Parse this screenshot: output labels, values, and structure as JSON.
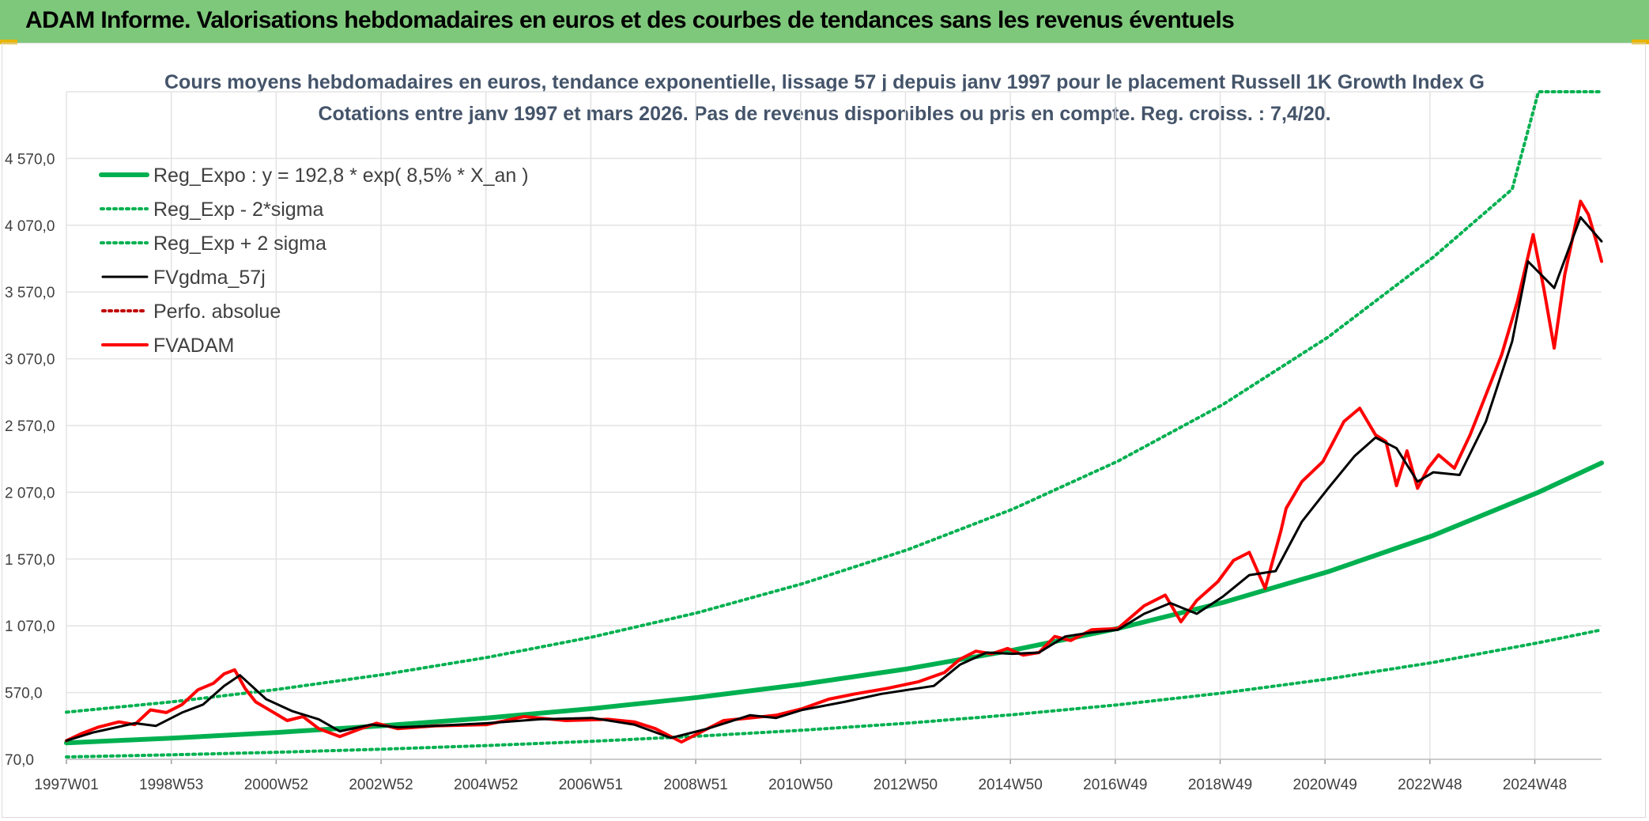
{
  "banner": {
    "title": "ADAM Informe. Valorisations hebdomadaires en euros et des courbes de tendances sans les revenus éventuels",
    "bg_color": "#7ec87b"
  },
  "chart_data": {
    "type": "line",
    "title": "Cours moyens hebdomadaires en euros, tendance exponentielle, lissage 57 j depuis janv 1997 pour le placement Russell 1K Growth Index G",
    "subtitle": "Cotations entre janv 1997 et mars 2026. Pas de revenus disponibles ou pris en compte. Reg. croiss. : 7,4/20.",
    "xlabel": "",
    "ylabel": "",
    "x_ticks": [
      "1997W01",
      "1998W53",
      "2000W52",
      "2002W52",
      "2004W52",
      "2006W51",
      "2008W51",
      "2010W50",
      "2012W50",
      "2014W50",
      "2016W49",
      "2018W49",
      "2020W49",
      "2022W48",
      "2024W48"
    ],
    "y_ticks": [
      "70,0",
      "570,0",
      "1 070,0",
      "1 570,0",
      "2 070,0",
      "2 570,0",
      "3 070,0",
      "3 570,0",
      "4 070,0",
      "4 570,0"
    ],
    "ylim": [
      70,
      5070
    ],
    "xlim": [
      1997.0,
      2026.2
    ],
    "grid": true,
    "legend_position": "top-left",
    "series": [
      {
        "name": "Reg_Expo : y = 192,8 * exp( 8,5% *  X_an )",
        "color": "#00b050",
        "style": "solid-thick",
        "x": [
          1997,
          1999,
          2001,
          2003,
          2005,
          2007,
          2009,
          2011,
          2013,
          2015,
          2017,
          2019,
          2021,
          2023,
          2025,
          2026.2
        ],
        "y": [
          193,
          228,
          271,
          321,
          380,
          450,
          533,
          632,
          748,
          887,
          1050,
          1245,
          1475,
          1747,
          2070,
          2290
        ]
      },
      {
        "name": "Reg_Exp - 2*sigma",
        "color": "#00b050",
        "style": "dotted",
        "x": [
          1997,
          1999,
          2001,
          2003,
          2005,
          2007,
          2009,
          2011,
          2013,
          2015,
          2017,
          2019,
          2021,
          2023,
          2025,
          2026.2
        ],
        "y": [
          88,
          104,
          123,
          146,
          173,
          205,
          243,
          288,
          341,
          404,
          478,
          567,
          672,
          796,
          943,
          1040
        ]
      },
      {
        "name": "Reg_Exp + 2 sigma",
        "color": "#00b050",
        "style": "dotted",
        "x": [
          1997,
          1999,
          2001,
          2003,
          2005,
          2007,
          2009,
          2011,
          2013,
          2015,
          2017,
          2019,
          2021,
          2023,
          2024.5,
          2025,
          2026.2
        ],
        "y": [
          423,
          500,
          593,
          703,
          833,
          986,
          1168,
          1385,
          1640,
          1944,
          2303,
          2728,
          3233,
          3831,
          4340,
          5070,
          5070
        ]
      },
      {
        "name": "FVgdma_57j",
        "color": "#000000",
        "style": "solid",
        "x": [
          1997,
          1997.5,
          1998.3,
          1998.7,
          1999.2,
          1999.6,
          2000.0,
          2000.3,
          2000.8,
          2001.3,
          2001.8,
          2002.2,
          2002.8,
          2003.3,
          2004.0,
          2005.0,
          2006.0,
          2007.0,
          2007.8,
          2008.5,
          2009.2,
          2010.0,
          2010.5,
          2011.0,
          2011.8,
          2012.5,
          2013.5,
          2014.0,
          2014.5,
          2015.0,
          2015.5,
          2016.0,
          2016.5,
          2017.0,
          2017.5,
          2018.0,
          2018.5,
          2019.0,
          2019.5,
          2020.0,
          2020.5,
          2021.0,
          2021.5,
          2021.9,
          2022.3,
          2022.7,
          2023.0,
          2023.5,
          2024.0,
          2024.5,
          2024.8,
          2025.3,
          2025.8,
          2026.2
        ],
        "y": [
          210,
          270,
          340,
          320,
          420,
          480,
          620,
          700,
          520,
          430,
          370,
          280,
          330,
          310,
          320,
          340,
          370,
          380,
          330,
          230,
          300,
          400,
          380,
          440,
          500,
          560,
          620,
          780,
          870,
          860,
          870,
          990,
          1020,
          1040,
          1160,
          1240,
          1160,
          1290,
          1450,
          1480,
          1850,
          2100,
          2340,
          2480,
          2400,
          2150,
          2220,
          2200,
          2600,
          3200,
          3800,
          3600,
          4130,
          3950
        ]
      },
      {
        "name": "Perfo. absolue",
        "color": "#c00000",
        "style": "dotted",
        "x": [],
        "y": []
      },
      {
        "name": "FVADAM",
        "color": "#ff0000",
        "style": "solid-thick",
        "x": [
          1997,
          1997.3,
          1997.6,
          1998.0,
          1998.3,
          1998.6,
          1998.9,
          1999.2,
          1999.5,
          1999.8,
          2000.0,
          2000.2,
          2000.4,
          2000.6,
          2000.9,
          2001.2,
          2001.5,
          2001.8,
          2002.2,
          2002.6,
          2002.9,
          2003.3,
          2004.0,
          2005.0,
          2005.7,
          2006.5,
          2007.3,
          2007.8,
          2008.2,
          2008.7,
          2009.0,
          2009.5,
          2010.0,
          2010.5,
          2011.0,
          2011.5,
          2012.0,
          2012.6,
          2013.2,
          2013.7,
          2014.0,
          2014.3,
          2014.6,
          2014.9,
          2015.2,
          2015.5,
          2015.8,
          2016.1,
          2016.5,
          2017.0,
          2017.5,
          2017.9,
          2018.2,
          2018.5,
          2018.9,
          2019.2,
          2019.5,
          2019.8,
          2020.1,
          2020.2,
          2020.5,
          2020.9,
          2021.3,
          2021.6,
          2021.9,
          2022.1,
          2022.3,
          2022.5,
          2022.7,
          2022.9,
          2023.1,
          2023.4,
          2023.7,
          2024.0,
          2024.3,
          2024.6,
          2024.9,
          2025.1,
          2025.3,
          2025.5,
          2025.8,
          2025.95,
          2026.1,
          2026.2
        ],
        "y": [
          210,
          265,
          310,
          350,
          330,
          440,
          420,
          480,
          590,
          640,
          710,
          740,
          600,
          500,
          430,
          360,
          390,
          300,
          240,
          300,
          340,
          300,
          320,
          330,
          390,
          360,
          370,
          350,
          300,
          200,
          260,
          360,
          380,
          400,
          450,
          520,
          560,
          600,
          650,
          720,
          820,
          880,
          860,
          900,
          850,
          870,
          990,
          960,
          1040,
          1050,
          1220,
          1300,
          1100,
          1260,
          1400,
          1560,
          1620,
          1350,
          1780,
          1950,
          2150,
          2300,
          2600,
          2700,
          2500,
          2450,
          2120,
          2380,
          2100,
          2250,
          2350,
          2250,
          2500,
          2800,
          3100,
          3500,
          4000,
          3600,
          3150,
          3700,
          4250,
          4150,
          3950,
          3800
        ]
      }
    ]
  }
}
